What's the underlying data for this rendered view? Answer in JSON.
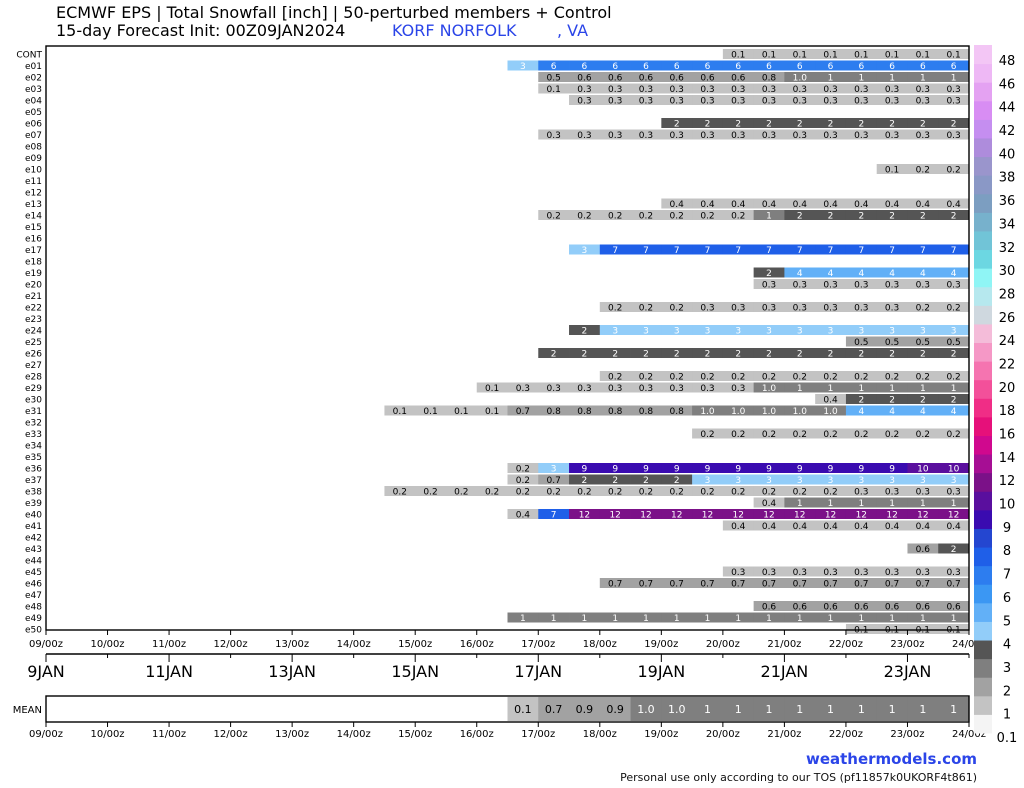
{
  "header": {
    "title_line1": "ECMWF EPS | Total Snowfall [inch] | 50-perturbed members + Control",
    "title_line2": "15-day Forecast Init: 00Z09JAN2024",
    "location_name": "KORF NORFOLK",
    "location_state": ", VA"
  },
  "footer": {
    "brand": "weathermodels.com",
    "tos": "Personal use only according to our TOS (pf11857k0UKORF4t861)"
  },
  "colors": {
    "text_blue": "#2b45e8",
    "palette": [
      "#f4f4f4",
      "#c3c3c3",
      "#a2a2a2",
      "#7f7f7f",
      "#555555",
      "#92cdf9",
      "#62b0f7",
      "#3b97f3",
      "#2d7def",
      "#1f5fe8",
      "#2446d0",
      "#3a0bb0",
      "#5a0f9e",
      "#7b1188",
      "#a60e94",
      "#d0088e",
      "#e6107a",
      "#f02d86",
      "#f3509a",
      "#f574b0",
      "#f598c6",
      "#f4bcd9",
      "#cfd8df",
      "#b6e8ee",
      "#8ff5f5",
      "#6cd7e2",
      "#71c4d7",
      "#77b1cc",
      "#7c9ec1",
      "#8a98c6",
      "#9a95cc",
      "#ae8cdc",
      "#c58ef0",
      "#d88df3",
      "#e4a2f2",
      "#eeb8f5",
      "#f3c6f5"
    ]
  },
  "legend": {
    "labels": [
      "0.1",
      "1",
      "2",
      "3",
      "4",
      "5",
      "6",
      "7",
      "8",
      "9",
      "10",
      "12",
      "14",
      "16",
      "18",
      "20",
      "22",
      "24",
      "26",
      "28",
      "30",
      "32",
      "34",
      "36",
      "38",
      "40",
      "42",
      "44",
      "46",
      "48"
    ]
  },
  "chart_data": {
    "type": "heatmap",
    "title": "ECMWF EPS | Total Snowfall [inch] | 50-perturbed members + Control",
    "units": "inch",
    "x_tick_labels": [
      "09/00z",
      "10/00z",
      "11/00z",
      "12/00z",
      "13/00z",
      "14/00z",
      "15/00z",
      "16/00z",
      "17/00z",
      "18/00z",
      "19/00z",
      "20/00z",
      "21/00z",
      "22/00z",
      "23/00z",
      "24/00z"
    ],
    "date_labels": [
      "9JAN",
      "11JAN",
      "13JAN",
      "15JAN",
      "17JAN",
      "19JAN",
      "21JAN",
      "23JAN"
    ],
    "rows": [
      {
        "name": "CONT",
        "start": 22,
        "values": [
          "0.1",
          "0.1",
          "0.1",
          "0.1",
          "0.1",
          "0.1",
          "0.1",
          "0.1"
        ]
      },
      {
        "name": "e01",
        "start": 15,
        "values": [
          "3",
          "6",
          "6",
          "6",
          "6",
          "6",
          "6",
          "6",
          "6",
          "6",
          "6",
          "6",
          "6",
          "6",
          "6",
          "6"
        ]
      },
      {
        "name": "e02",
        "start": 16,
        "values": [
          "0.5",
          "0.6",
          "0.6",
          "0.6",
          "0.6",
          "0.6",
          "0.6",
          "0.8",
          "1.0",
          "1",
          "1",
          "1",
          "1",
          "1",
          "1"
        ]
      },
      {
        "name": "e03",
        "start": 16,
        "values": [
          "0.1",
          "0.3",
          "0.3",
          "0.3",
          "0.3",
          "0.3",
          "0.3",
          "0.3",
          "0.3",
          "0.3",
          "0.3",
          "0.3",
          "0.3",
          "0.3",
          "0.3"
        ]
      },
      {
        "name": "e04",
        "start": 17,
        "values": [
          "0.3",
          "0.3",
          "0.3",
          "0.3",
          "0.3",
          "0.3",
          "0.3",
          "0.3",
          "0.3",
          "0.3",
          "0.3",
          "0.3",
          "0.3",
          "0.3"
        ]
      },
      {
        "name": "e05",
        "start": 0,
        "values": []
      },
      {
        "name": "e06",
        "start": 20,
        "values": [
          "2",
          "2",
          "2",
          "2",
          "2",
          "2",
          "2",
          "2",
          "2",
          "2",
          "2"
        ]
      },
      {
        "name": "e07",
        "start": 16,
        "values": [
          "0.3",
          "0.3",
          "0.3",
          "0.3",
          "0.3",
          "0.3",
          "0.3",
          "0.3",
          "0.3",
          "0.3",
          "0.3",
          "0.3",
          "0.3",
          "0.3",
          "0.3"
        ]
      },
      {
        "name": "e08",
        "start": 0,
        "values": []
      },
      {
        "name": "e09",
        "start": 0,
        "values": []
      },
      {
        "name": "e10",
        "start": 27,
        "values": [
          "0.1",
          "0.2",
          "0.2",
          "0.2"
        ]
      },
      {
        "name": "e11",
        "start": 0,
        "values": []
      },
      {
        "name": "e12",
        "start": 0,
        "values": []
      },
      {
        "name": "e13",
        "start": 20,
        "values": [
          "0.4",
          "0.4",
          "0.4",
          "0.4",
          "0.4",
          "0.4",
          "0.4",
          "0.4",
          "0.4",
          "0.4",
          "0.4"
        ]
      },
      {
        "name": "e14",
        "start": 16,
        "values": [
          "0.2",
          "0.2",
          "0.2",
          "0.2",
          "0.2",
          "0.2",
          "0.2",
          "1",
          "2",
          "2",
          "2",
          "2",
          "2",
          "2",
          "2"
        ]
      },
      {
        "name": "e15",
        "start": 0,
        "values": []
      },
      {
        "name": "e16",
        "start": 0,
        "values": []
      },
      {
        "name": "e17",
        "start": 17,
        "values": [
          "3",
          "7",
          "7",
          "7",
          "7",
          "7",
          "7",
          "7",
          "7",
          "7",
          "7",
          "7",
          "7",
          "7"
        ]
      },
      {
        "name": "e18",
        "start": 0,
        "values": []
      },
      {
        "name": "e19",
        "start": 23,
        "values": [
          "2",
          "4",
          "4",
          "4",
          "4",
          "4",
          "4",
          "4"
        ]
      },
      {
        "name": "e20",
        "start": 23,
        "values": [
          "0.3",
          "0.3",
          "0.3",
          "0.3",
          "0.3",
          "0.3",
          "0.3",
          "0.3"
        ]
      },
      {
        "name": "e21",
        "start": 0,
        "values": []
      },
      {
        "name": "e22",
        "start": 18,
        "values": [
          "0.2",
          "0.2",
          "0.2",
          "0.3",
          "0.3",
          "0.3",
          "0.3",
          "0.3",
          "0.3",
          "0.3",
          "0.2",
          "0.2",
          "0.2"
        ]
      },
      {
        "name": "e23",
        "start": 0,
        "values": []
      },
      {
        "name": "e24",
        "start": 17,
        "values": [
          "2",
          "3",
          "3",
          "3",
          "3",
          "3",
          "3",
          "3",
          "3",
          "3",
          "3",
          "3",
          "3",
          "3"
        ]
      },
      {
        "name": "e25",
        "start": 26,
        "values": [
          "0.5",
          "0.5",
          "0.5",
          "0.5",
          "0.5"
        ]
      },
      {
        "name": "e26",
        "start": 16,
        "values": [
          "2",
          "2",
          "2",
          "2",
          "2",
          "2",
          "2",
          "2",
          "2",
          "2",
          "2",
          "2",
          "2",
          "2",
          "2"
        ]
      },
      {
        "name": "e27",
        "start": 0,
        "values": []
      },
      {
        "name": "e28",
        "start": 18,
        "values": [
          "0.2",
          "0.2",
          "0.2",
          "0.2",
          "0.2",
          "0.2",
          "0.2",
          "0.2",
          "0.2",
          "0.2",
          "0.2",
          "0.2",
          "0.2"
        ]
      },
      {
        "name": "e29",
        "start": 14,
        "values": [
          "0.1",
          "0.3",
          "0.3",
          "0.3",
          "0.3",
          "0.3",
          "0.3",
          "0.3",
          "0.3",
          "1.0",
          "1",
          "1",
          "1",
          "1",
          "1",
          "1",
          "1"
        ]
      },
      {
        "name": "e30",
        "start": 25,
        "values": [
          "0.4",
          "2",
          "2",
          "2",
          "2",
          "2"
        ]
      },
      {
        "name": "e31",
        "start": 11,
        "values": [
          "0.1",
          "0.1",
          "0.1",
          "0.1",
          "0.7",
          "0.8",
          "0.8",
          "0.8",
          "0.8",
          "0.8",
          "1.0",
          "1.0",
          "1.0",
          "1.0",
          "1.0",
          "4",
          "4",
          "4",
          "4",
          "4"
        ]
      },
      {
        "name": "e32",
        "start": 0,
        "values": []
      },
      {
        "name": "e33",
        "start": 21,
        "values": [
          "0.2",
          "0.2",
          "0.2",
          "0.2",
          "0.2",
          "0.2",
          "0.2",
          "0.2",
          "0.2",
          "0.2"
        ]
      },
      {
        "name": "e34",
        "start": 0,
        "values": []
      },
      {
        "name": "e35",
        "start": 0,
        "values": []
      },
      {
        "name": "e36",
        "start": 15,
        "values": [
          "0.2",
          "3",
          "9",
          "9",
          "9",
          "9",
          "9",
          "9",
          "9",
          "9",
          "9",
          "9",
          "9",
          "10",
          "10",
          "10"
        ]
      },
      {
        "name": "e37",
        "start": 15,
        "values": [
          "0.2",
          "0.7",
          "2",
          "2",
          "2",
          "2",
          "3",
          "3",
          "3",
          "3",
          "3",
          "3",
          "3",
          "3",
          "3",
          "3"
        ]
      },
      {
        "name": "e38",
        "start": 11,
        "values": [
          "0.2",
          "0.2",
          "0.2",
          "0.2",
          "0.2",
          "0.2",
          "0.2",
          "0.2",
          "0.2",
          "0.2",
          "0.2",
          "0.2",
          "0.2",
          "0.2",
          "0.2",
          "0.3",
          "0.3",
          "0.3",
          "0.3",
          "0.3"
        ]
      },
      {
        "name": "e39",
        "start": 23,
        "values": [
          "0.4",
          "1",
          "1",
          "1",
          "1",
          "1",
          "1",
          "1"
        ]
      },
      {
        "name": "e40",
        "start": 15,
        "values": [
          "0.4",
          "7",
          "12",
          "12",
          "12",
          "12",
          "12",
          "12",
          "12",
          "12",
          "12",
          "12",
          "12",
          "12",
          "12",
          "12"
        ]
      },
      {
        "name": "e41",
        "start": 22,
        "values": [
          "0.4",
          "0.4",
          "0.4",
          "0.4",
          "0.4",
          "0.4",
          "0.4",
          "0.4",
          "0.4"
        ]
      },
      {
        "name": "e42",
        "start": 0,
        "values": []
      },
      {
        "name": "e43",
        "start": 28,
        "values": [
          "0.6",
          "2",
          "2"
        ]
      },
      {
        "name": "e44",
        "start": 0,
        "values": []
      },
      {
        "name": "e45",
        "start": 22,
        "values": [
          "0.3",
          "0.3",
          "0.3",
          "0.3",
          "0.3",
          "0.3",
          "0.3",
          "0.3",
          "0.3"
        ]
      },
      {
        "name": "e46",
        "start": 18,
        "values": [
          "0.7",
          "0.7",
          "0.7",
          "0.7",
          "0.7",
          "0.7",
          "0.7",
          "0.7",
          "0.7",
          "0.7",
          "0.7",
          "0.7",
          "0.7"
        ]
      },
      {
        "name": "e47",
        "start": 0,
        "values": []
      },
      {
        "name": "e48",
        "start": 23,
        "values": [
          "0.6",
          "0.6",
          "0.6",
          "0.6",
          "0.6",
          "0.6",
          "0.6",
          "0.6"
        ]
      },
      {
        "name": "e49",
        "start": 15,
        "values": [
          "1",
          "1",
          "1",
          "1",
          "1",
          "1",
          "1",
          "1",
          "1",
          "1",
          "1",
          "1",
          "1",
          "1",
          "1",
          "1"
        ]
      },
      {
        "name": "e50",
        "start": 26,
        "values": [
          "0.1",
          "0.1",
          "0.1",
          "0.1",
          "0.1"
        ]
      }
    ],
    "mean": {
      "name": "MEAN",
      "start": 15,
      "values": [
        "0.1",
        "0.7",
        "0.9",
        "0.9",
        "1.0",
        "1.0",
        "1",
        "1",
        "1",
        "1",
        "1",
        "1",
        "1",
        "1",
        "1",
        "1"
      ]
    }
  }
}
